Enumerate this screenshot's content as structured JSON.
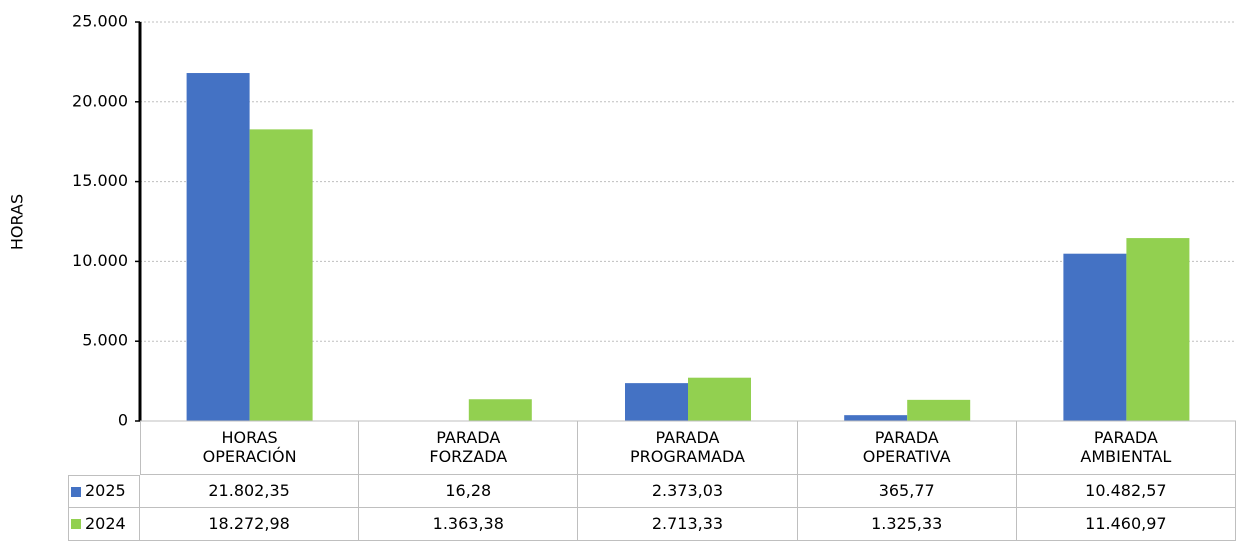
{
  "chart_data": {
    "type": "bar",
    "y_label": "HORAS",
    "categories": [
      "HORAS OPERACIÓN",
      "PARADA FORZADA",
      "PARADA PROGRAMADA",
      "PARADA OPERATIVA",
      "PARADA AMBIENTAL"
    ],
    "series": [
      {
        "name": "2025",
        "color": "#4472c4",
        "values": [
          21802.35,
          16.28,
          2373.03,
          365.77,
          10482.57
        ],
        "value_labels": [
          "21.802,35",
          "16,28",
          "2.373,03",
          "365,77",
          "10.482,57"
        ]
      },
      {
        "name": "2024",
        "color": "#92d050",
        "values": [
          18272.98,
          1363.38,
          2713.33,
          1325.33,
          11460.97
        ],
        "value_labels": [
          "18.272,98",
          "1.363,38",
          "2.713,33",
          "1.325,33",
          "11.460,97"
        ]
      }
    ],
    "ylim": [
      0,
      25000
    ],
    "yticks": [
      0,
      {
        "value": 5000,
        "label": "5.000"
      },
      {
        "value": 10000,
        "label": "10.000"
      },
      {
        "value": 15000,
        "label": "15.000"
      },
      {
        "value": 20000,
        "label": "20.000"
      },
      {
        "value": 25000,
        "label": "25.000"
      }
    ],
    "grid": true
  }
}
